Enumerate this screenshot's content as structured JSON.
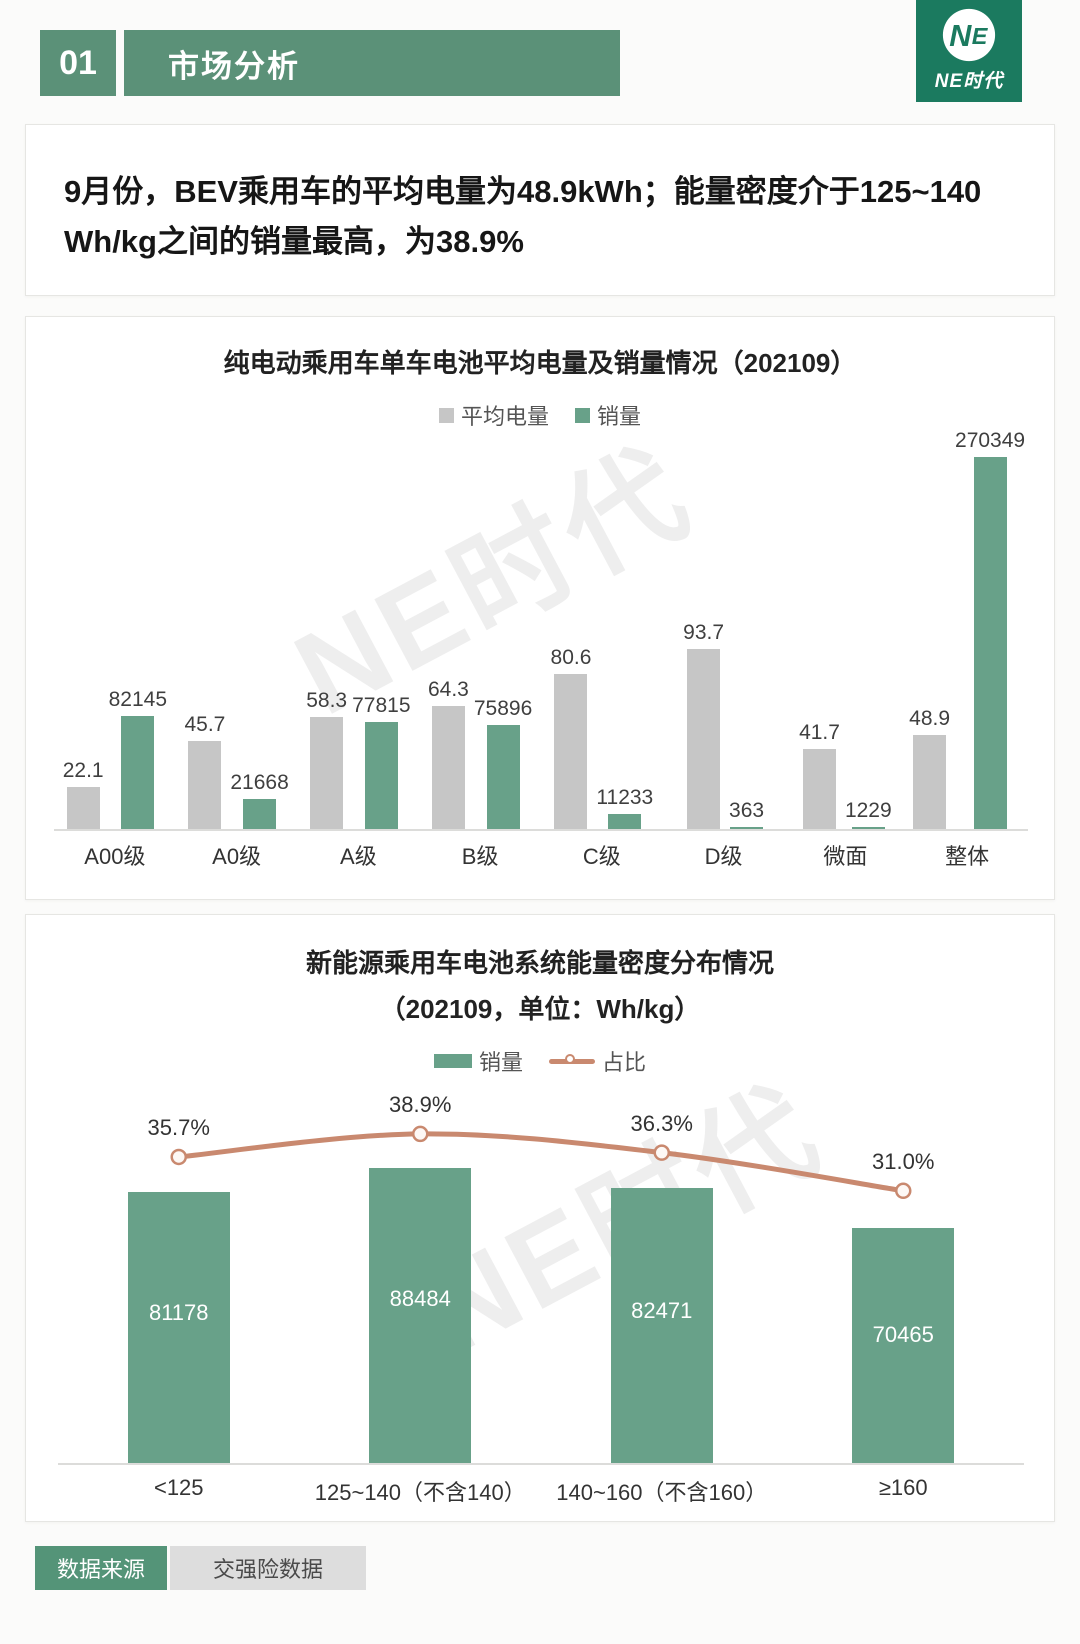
{
  "header": {
    "number": "01",
    "title": "市场分析",
    "logo_text": "NE时代"
  },
  "headline": {
    "text": "9月份，BEV乘用车的平均电量为48.9kWh；能量密度介于125~140 Wh/kg之间的销量最高，为38.9%"
  },
  "watermark": "NE时代",
  "colors": {
    "banner_green": "#5b9178",
    "logo_green": "#1b7a5f",
    "bar_green": "#68a189",
    "bar_gray": "#c6c6c6",
    "line_salmon": "#c9896f"
  },
  "chart_data": [
    {
      "type": "bar",
      "title": "纯电动乘用车单车电池平均电量及销量情况（202109）",
      "categories": [
        "A00级",
        "A0级",
        "A级",
        "B级",
        "C级",
        "D级",
        "微面",
        "整体"
      ],
      "series": [
        {
          "name": "平均电量",
          "color": "#c6c6c6",
          "values": [
            22.1,
            45.7,
            58.3,
            64.3,
            80.6,
            93.7,
            41.7,
            48.9
          ]
        },
        {
          "name": "销量",
          "color": "#68a189",
          "values": [
            82145,
            21668,
            77815,
            75896,
            11233,
            363,
            1229,
            270349
          ]
        }
      ],
      "legend_position": "top",
      "axis": "hidden"
    },
    {
      "type": "bar+line",
      "title": "新能源乘用车电池系统能量密度分布情况",
      "subtitle": "（202109，单位：Wh/kg）",
      "categories": [
        "<125",
        "125~140（不含140）",
        "140~160（不含160）",
        "≥160"
      ],
      "series": [
        {
          "name": "销量",
          "type": "bar",
          "color": "#68a189",
          "values": [
            81178,
            88484,
            82471,
            70465
          ]
        },
        {
          "name": "占比",
          "type": "line",
          "color": "#c9896f",
          "values": [
            35.7,
            38.9,
            36.3,
            31.0
          ],
          "unit": "%"
        }
      ],
      "legend_position": "top",
      "axis": "hidden"
    }
  ],
  "footer": {
    "source_label": "数据来源",
    "source_value": "交强险数据"
  }
}
